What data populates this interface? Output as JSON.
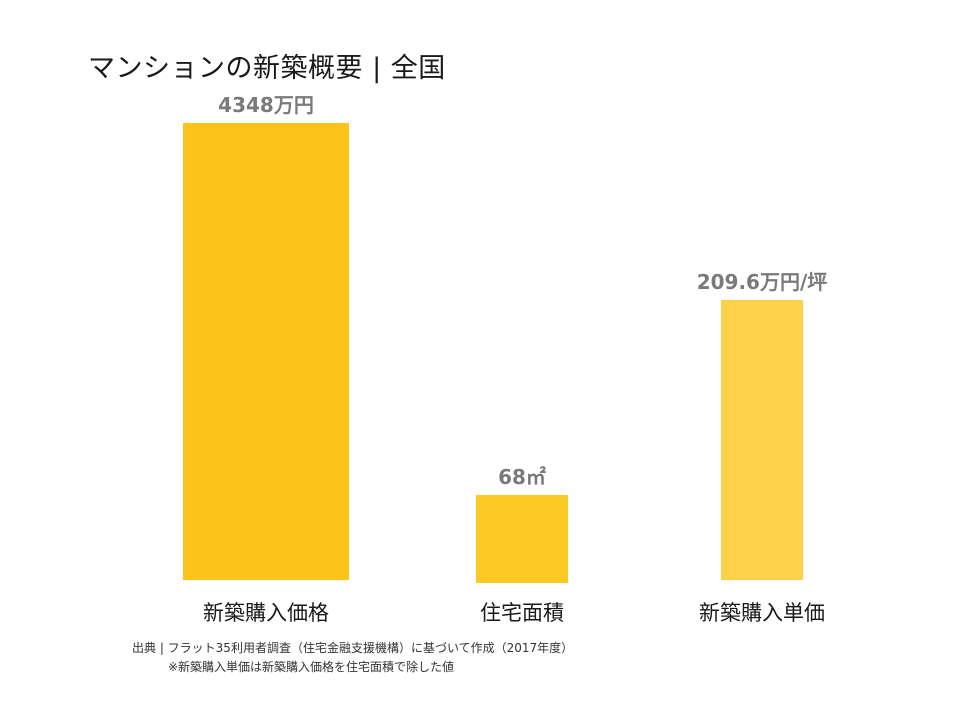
{
  "chart_data": {
    "type": "bar",
    "title": "マンションの新築概要 | 全国",
    "categories": [
      "新築購入価格",
      "住宅面積",
      "新築購入単価"
    ],
    "values": [
      4348,
      68,
      209.6
    ],
    "value_labels": [
      "4348万円",
      "68㎡",
      "209.6万円/坪"
    ],
    "units": [
      "万円",
      "㎡",
      "万円/坪"
    ],
    "bar_colors": [
      "#fcc31b",
      "#fdc925",
      "#fdd14a"
    ],
    "note_scale": "each category drawn on its own scale"
  },
  "source": "出典 | フラット35利用者調査（住宅金融支援機構）に基づいて作成（2017年度）",
  "note": "※新築購入単価は新築購入価格を住宅面積で除した値"
}
